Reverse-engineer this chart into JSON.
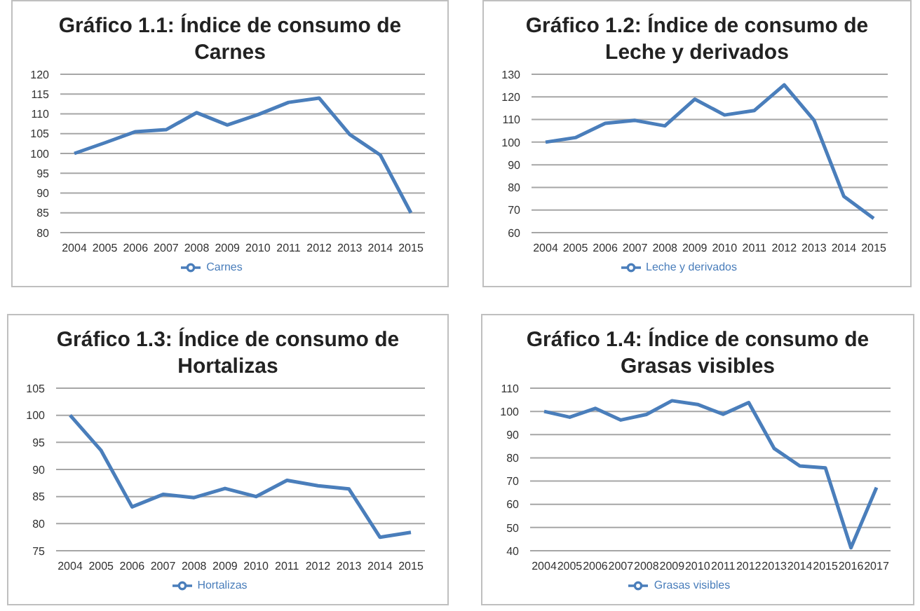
{
  "chart_data": [
    {
      "type": "line",
      "title": "Gráfico 1.1: Índice de consumo de Carnes",
      "categories": [
        "2004",
        "2005",
        "2006",
        "2007",
        "2008",
        "2009",
        "2010",
        "2011",
        "2012",
        "2013",
        "2014",
        "2015"
      ],
      "series": [
        {
          "name": "Carnes",
          "color": "#4a7ebb",
          "values": [
            100,
            102.7,
            105.5,
            106,
            110.3,
            107.2,
            109.8,
            112.9,
            114,
            104.8,
            99.6,
            85
          ]
        }
      ],
      "ylim": [
        80,
        120
      ],
      "yticks": [
        80,
        85,
        90,
        95,
        100,
        105,
        110,
        115,
        120
      ],
      "grid": "y",
      "legend": "bottom",
      "marker": "none",
      "line_style": "solid"
    },
    {
      "type": "line",
      "title": "Gráfico 1.2: Índice de consumo de Leche y derivados",
      "categories": [
        "2004",
        "2005",
        "2006",
        "2007",
        "2008",
        "2009",
        "2010",
        "2011",
        "2012",
        "2013",
        "2014",
        "2015"
      ],
      "series": [
        {
          "name": "Leche y derivados",
          "color": "#4a7ebb",
          "values": [
            100,
            102,
            108.3,
            109.6,
            107.2,
            119,
            112,
            114,
            125.3,
            109.7,
            76,
            66.3
          ]
        }
      ],
      "ylim": [
        60,
        130
      ],
      "yticks": [
        60,
        70,
        80,
        90,
        100,
        110,
        120,
        130
      ],
      "grid": "y",
      "legend": "bottom",
      "marker": "none",
      "line_style": "solid"
    },
    {
      "type": "line",
      "title": "Gráfico 1.3: Índice de consumo de Hortalizas",
      "categories": [
        "2004",
        "2005",
        "2006",
        "2007",
        "2008",
        "2009",
        "2010",
        "2011",
        "2012",
        "2013",
        "2014",
        "2015"
      ],
      "series": [
        {
          "name": "Hortalizas",
          "color": "#4a7ebb",
          "values": [
            100,
            93.5,
            83.1,
            85.4,
            84.8,
            86.5,
            85,
            88,
            87,
            86.4,
            77.5,
            78.4
          ]
        }
      ],
      "ylim": [
        75,
        105
      ],
      "yticks": [
        75,
        80,
        85,
        90,
        95,
        100,
        105
      ],
      "grid": "y",
      "legend": "bottom",
      "marker": "none",
      "line_style": "solid"
    },
    {
      "type": "line",
      "title": "Gráfico 1.4: Índice de consumo de Grasas visibles",
      "categories": [
        "2004",
        "2005",
        "2006",
        "2007",
        "2008",
        "2009",
        "2010",
        "2011",
        "2012",
        "2013",
        "2014",
        "2015",
        "2016",
        "2017"
      ],
      "series": [
        {
          "name": "Grasas visibles",
          "color": "#4a7ebb",
          "values": [
            100,
            97.5,
            101.3,
            96.3,
            98.7,
            104.6,
            103,
            98.8,
            103.8,
            84,
            76.5,
            75.7,
            41.3,
            67.2
          ]
        }
      ],
      "ylim": [
        40,
        110
      ],
      "yticks": [
        40,
        50,
        60,
        70,
        80,
        90,
        100,
        110
      ],
      "grid": "y",
      "legend": "bottom",
      "marker": "none",
      "line_style": "solid"
    }
  ]
}
